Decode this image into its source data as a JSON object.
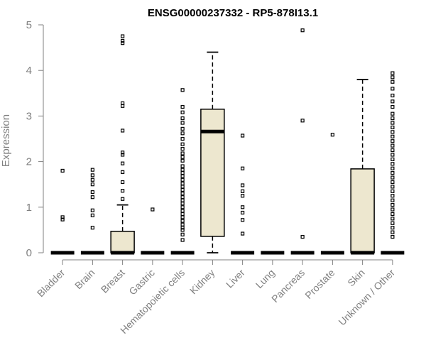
{
  "chart_data": {
    "type": "box",
    "title": "ENSG00000237332 - RP5-878I13.1",
    "ylabel": "Expression",
    "xlabel": "",
    "ylim": [
      0,
      5
    ],
    "yticks": [
      "0",
      "1",
      "2",
      "3",
      "4",
      "5"
    ],
    "categories": [
      "Bladder",
      "Brain",
      "Breast",
      "Gastric",
      "Hematopoietic cells",
      "Kidney",
      "Liver",
      "Lung",
      "Pancreas",
      "Prostate",
      "Skin",
      "Unknown / Other"
    ],
    "box_color": "#ede7cf",
    "boxes": [
      {
        "q1": 0,
        "median": 0,
        "q3": 0,
        "whisker_low": 0,
        "whisker_high": 0,
        "outliers": [
          0.73,
          0.78,
          1.8
        ]
      },
      {
        "q1": 0,
        "median": 0,
        "q3": 0,
        "whisker_low": 0,
        "whisker_high": 0,
        "outliers": [
          0.55,
          0.82,
          0.93,
          1.22,
          1.33,
          1.5,
          1.6,
          1.7,
          1.82
        ]
      },
      {
        "q1": 0,
        "median": 0,
        "q3": 0.47,
        "whisker_low": 0,
        "whisker_high": 1.05,
        "outliers": [
          1.18,
          1.36,
          1.55,
          1.77,
          1.96,
          2.15,
          2.2,
          2.68,
          3.22,
          3.28,
          4.6,
          4.65,
          4.75
        ]
      },
      {
        "q1": 0,
        "median": 0,
        "q3": 0,
        "whisker_low": 0,
        "whisker_high": 0,
        "outliers": [
          0.95
        ]
      },
      {
        "q1": 0,
        "median": 0,
        "q3": 0,
        "whisker_low": 0,
        "whisker_high": 0,
        "outliers": [
          0.28,
          0.4,
          0.5,
          0.55,
          0.62,
          0.7,
          0.78,
          0.85,
          0.92,
          1.0,
          1.08,
          1.15,
          1.22,
          1.3,
          1.38,
          1.45,
          1.52,
          1.6,
          1.68,
          1.75,
          1.82,
          1.9,
          2.02,
          2.1,
          2.18,
          2.28,
          2.38,
          2.5,
          2.62,
          2.72,
          2.85,
          2.95,
          3.08,
          3.2,
          3.57
        ]
      },
      {
        "q1": 0.36,
        "median": 2.66,
        "q3": 3.15,
        "whisker_low": 0,
        "whisker_high": 4.4,
        "outliers": []
      },
      {
        "q1": 0,
        "median": 0,
        "q3": 0,
        "whisker_low": 0,
        "whisker_high": 0,
        "outliers": [
          0.42,
          0.72,
          0.88,
          1.0,
          1.25,
          1.35,
          1.48,
          1.85,
          2.57
        ]
      },
      {
        "q1": 0,
        "median": 0,
        "q3": 0,
        "whisker_low": 0,
        "whisker_high": 0,
        "outliers": []
      },
      {
        "q1": 0,
        "median": 0,
        "q3": 0,
        "whisker_low": 0,
        "whisker_high": 0,
        "outliers": [
          0.35,
          2.9,
          4.88
        ]
      },
      {
        "q1": 0,
        "median": 0,
        "q3": 0,
        "whisker_low": 0,
        "whisker_high": 0,
        "outliers": [
          2.59
        ]
      },
      {
        "q1": 0,
        "median": 0,
        "q3": 1.84,
        "whisker_low": 0,
        "whisker_high": 3.8,
        "outliers": []
      },
      {
        "q1": 0,
        "median": 0,
        "q3": 0,
        "whisker_low": 0,
        "whisker_high": 0,
        "outliers": [
          0.35,
          0.45,
          0.55,
          0.65,
          0.75,
          0.85,
          0.95,
          1.05,
          1.15,
          1.25,
          1.35,
          1.45,
          1.55,
          1.65,
          1.75,
          1.85,
          1.95,
          2.05,
          2.15,
          2.25,
          2.35,
          2.45,
          2.55,
          2.65,
          2.75,
          2.85,
          2.95,
          3.05,
          3.2,
          3.32,
          3.45,
          3.6,
          3.75,
          3.85,
          3.94
        ]
      }
    ],
    "grid": false,
    "legend": "none"
  }
}
